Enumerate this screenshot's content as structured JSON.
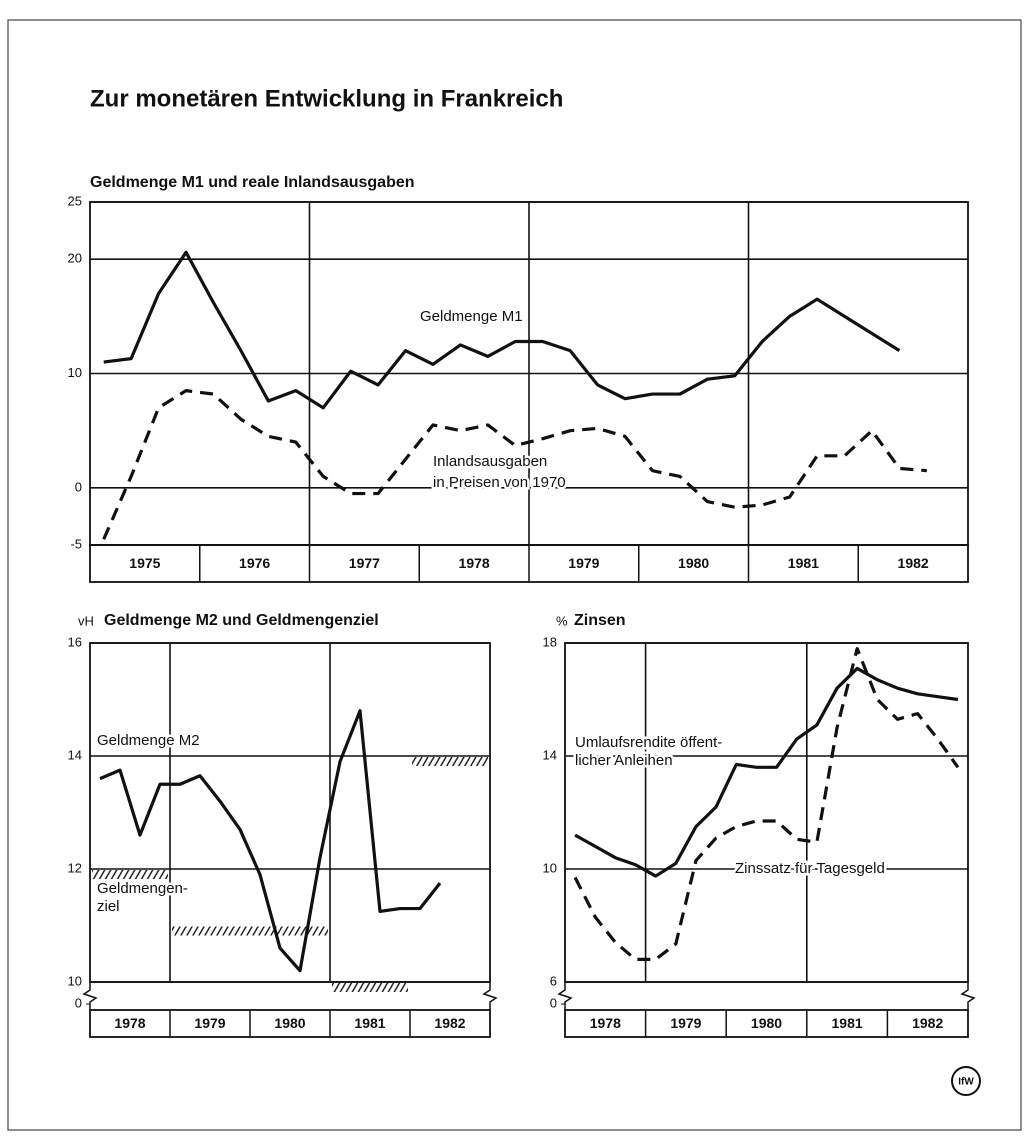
{
  "title": "Zur monetären Entwicklung in Frankreich",
  "logo": "IfW",
  "chart_data": [
    {
      "type": "line",
      "title": "Geldmenge M1 und reale Inlandsausgaben",
      "xlim": [
        1975,
        1983
      ],
      "categories": [
        "1975",
        "1976",
        "1977",
        "1978",
        "1979",
        "1980",
        "1981",
        "1982"
      ],
      "xgrid": [
        1977,
        1979,
        1981
      ],
      "ylim": [
        -5,
        25
      ],
      "yticks": [
        -5,
        0,
        10,
        20,
        25
      ],
      "x": [
        1975.125,
        1975.375,
        1975.625,
        1975.875,
        1976.125,
        1976.375,
        1976.625,
        1976.875,
        1977.125,
        1977.375,
        1977.625,
        1977.875,
        1978.125,
        1978.375,
        1978.625,
        1978.875,
        1979.125,
        1979.375,
        1979.625,
        1979.875,
        1980.125,
        1980.375,
        1980.625,
        1980.875,
        1981.125,
        1981.375,
        1981.625,
        1981.875,
        1982.125,
        1982.375,
        1982.625
      ],
      "series": [
        {
          "name": [
            "Geldmenge M1"
          ],
          "color": "#111111",
          "dash": false,
          "values": [
            11.0,
            11.3,
            17.0,
            20.6,
            16.2,
            12.0,
            7.6,
            8.5,
            7.0,
            10.2,
            9.0,
            12.0,
            10.8,
            12.5,
            11.5,
            12.8,
            12.8,
            12.0,
            9.0,
            7.8,
            8.2,
            8.2,
            9.5,
            9.8,
            12.8,
            15.0,
            16.5,
            15.0,
            13.5,
            12.0,
            null
          ]
        },
        {
          "name": [
            "Inlandsausgaben",
            "in Preisen von 1970"
          ],
          "color": "#111111",
          "dash": true,
          "values": [
            -4.5,
            1.0,
            7.0,
            8.5,
            8.2,
            6.0,
            4.5,
            4.0,
            1.0,
            -0.5,
            -0.5,
            2.5,
            5.5,
            5.0,
            5.5,
            3.7,
            4.3,
            5.0,
            5.2,
            4.5,
            1.5,
            1.0,
            -1.2,
            -1.7,
            -1.5,
            -0.8,
            2.8,
            2.8,
            5.0,
            1.7,
            1.5
          ]
        }
      ]
    },
    {
      "type": "line",
      "title": "Geldmenge M2 und Geldmengenziel",
      "ylabel": "vH",
      "xlim": [
        1978,
        1983
      ],
      "categories": [
        "1978",
        "1979",
        "1980",
        "1981",
        "1982"
      ],
      "xgrid": [
        1979,
        1981
      ],
      "ylim": [
        10,
        16
      ],
      "yticks": [
        10,
        12,
        14,
        16
      ],
      "ybreak_tick": 0,
      "x": [
        1978.125,
        1978.375,
        1978.625,
        1978.875,
        1979.125,
        1979.375,
        1979.625,
        1979.875,
        1980.125,
        1980.375,
        1980.625,
        1980.875,
        1981.125,
        1981.375,
        1981.625,
        1981.875,
        1982.125,
        1982.375
      ],
      "series": [
        {
          "name": [
            "Geldmenge M2"
          ],
          "color": "#111111",
          "dash": false,
          "values": [
            13.6,
            13.75,
            12.6,
            13.5,
            13.5,
            13.65,
            13.2,
            12.7,
            11.9,
            10.6,
            10.2,
            12.2,
            13.9,
            14.8,
            11.25,
            11.3,
            11.3,
            11.75
          ]
        }
      ],
      "targets_name": [
        "Geldmengen-",
        "ziel"
      ],
      "targets": [
        {
          "x": [
            1978,
            1979
          ],
          "value": 12
        },
        {
          "x": [
            1979,
            1981
          ],
          "value": 11
        },
        {
          "x": [
            1981,
            1982
          ],
          "value": 10
        },
        {
          "x": [
            1982,
            1983
          ],
          "value": 14
        }
      ]
    },
    {
      "type": "line",
      "title": "Zinsen",
      "ylabel": "%",
      "xlim": [
        1978,
        1983
      ],
      "categories": [
        "1978",
        "1979",
        "1980",
        "1981",
        "1982"
      ],
      "xgrid": [
        1979,
        1981
      ],
      "ylim": [
        6,
        18
      ],
      "yticks": [
        6,
        10,
        14,
        18
      ],
      "ybreak_tick": 0,
      "x": [
        1978.125,
        1978.375,
        1978.625,
        1978.875,
        1979.125,
        1979.375,
        1979.625,
        1979.875,
        1980.125,
        1980.375,
        1980.625,
        1980.875,
        1981.125,
        1981.375,
        1981.625,
        1981.875,
        1982.125,
        1982.375,
        1982.625,
        1982.875
      ],
      "series": [
        {
          "name": [
            "Umlaufsrendite öffent-",
            "licher Anleihen"
          ],
          "color": "#111111",
          "dash": false,
          "values": [
            11.2,
            10.8,
            10.4,
            10.15,
            9.75,
            10.2,
            11.5,
            12.2,
            13.7,
            13.6,
            13.6,
            14.6,
            15.1,
            16.4,
            17.1,
            16.7,
            16.4,
            16.2,
            16.1,
            16.0
          ]
        },
        {
          "name": [
            "Zinssatz für Tagesgeld"
          ],
          "color": "#111111",
          "dash": true,
          "values": [
            9.7,
            8.3,
            7.4,
            6.8,
            6.8,
            7.35,
            10.3,
            11.1,
            11.5,
            11.7,
            11.7,
            11.05,
            10.95,
            15.0,
            17.8,
            16.0,
            15.3,
            15.5,
            14.6,
            13.6
          ]
        }
      ]
    }
  ]
}
